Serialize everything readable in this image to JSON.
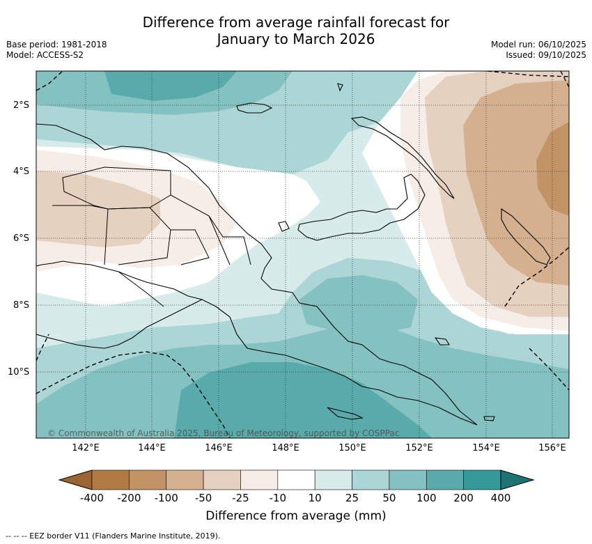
{
  "title_line1": "Difference from average rainfall forecast for",
  "title_line2": "January to March 2026",
  "base_period": "Base period: 1981-2018",
  "model": "Model: ACCESS-S2",
  "model_run": "Model run: 06/10/2025",
  "issued": "Issued: 09/10/2025",
  "lat_labels": [
    "2°S",
    "4°S",
    "6°S",
    "8°S",
    "10°S"
  ],
  "lon_labels": [
    "142°E",
    "144°E",
    "146°E",
    "148°E",
    "150°E",
    "152°E",
    "154°E",
    "156°E"
  ],
  "copyright": "© Commonwealth of Australia 2025, Bureau of Meteorology, supported by COSPPac",
  "colorbar": {
    "labels": [
      "-400",
      "-200",
      "-100",
      "-50",
      "-25",
      "-10",
      "10",
      "25",
      "50",
      "100",
      "200",
      "400"
    ],
    "colors": [
      "#9c6430",
      "#b07a45",
      "#c29465",
      "#d4b08f",
      "#e5d1bf",
      "#f5ede6",
      "#ffffff",
      "#d7ebea",
      "#acd6d6",
      "#84c1c1",
      "#59abab",
      "#35999a",
      "#1f7272"
    ],
    "title": "Difference from average (mm)"
  },
  "eez_note": "--  --  -- EEZ border V11 (Flanders Marine Institute, 2019)."
}
